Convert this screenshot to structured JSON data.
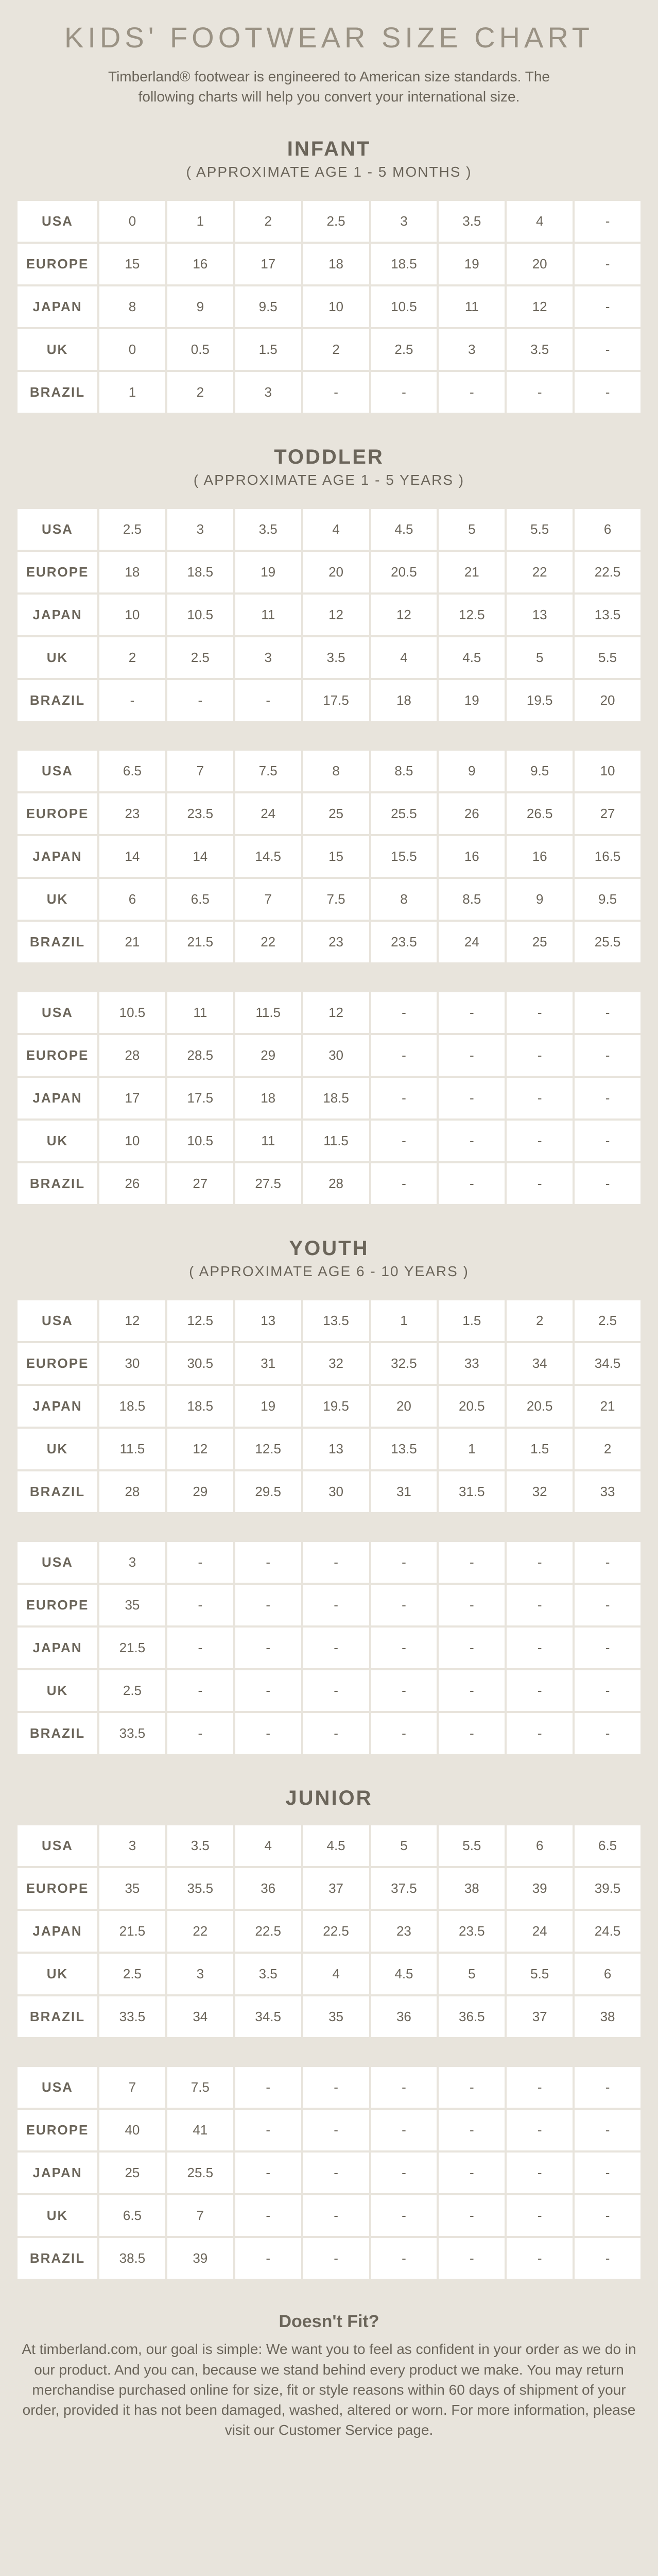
{
  "page_title": "KIDS' FOOTWEAR SIZE CHART",
  "subtitle": "Timberland® footwear is engineered to American size standards. The following charts will help you convert your international size.",
  "regions": [
    "USA",
    "EUROPE",
    "JAPAN",
    "UK",
    "BRAZIL"
  ],
  "sections": [
    {
      "title": "INFANT",
      "sub": "( APPROXIMATE AGE 1 - 5 MONTHS )",
      "tables": [
        [
          [
            "0",
            "1",
            "2",
            "2.5",
            "3",
            "3.5",
            "4",
            "-"
          ],
          [
            "15",
            "16",
            "17",
            "18",
            "18.5",
            "19",
            "20",
            "-"
          ],
          [
            "8",
            "9",
            "9.5",
            "10",
            "10.5",
            "11",
            "12",
            "-"
          ],
          [
            "0",
            "0.5",
            "1.5",
            "2",
            "2.5",
            "3",
            "3.5",
            "-"
          ],
          [
            "1",
            "2",
            "3",
            "-",
            "-",
            "-",
            "-",
            "-"
          ]
        ]
      ]
    },
    {
      "title": "TODDLER",
      "sub": "( APPROXIMATE AGE 1 - 5 YEARS )",
      "tables": [
        [
          [
            "2.5",
            "3",
            "3.5",
            "4",
            "4.5",
            "5",
            "5.5",
            "6"
          ],
          [
            "18",
            "18.5",
            "19",
            "20",
            "20.5",
            "21",
            "22",
            "22.5"
          ],
          [
            "10",
            "10.5",
            "11",
            "12",
            "12",
            "12.5",
            "13",
            "13.5"
          ],
          [
            "2",
            "2.5",
            "3",
            "3.5",
            "4",
            "4.5",
            "5",
            "5.5"
          ],
          [
            "-",
            "-",
            "-",
            "17.5",
            "18",
            "19",
            "19.5",
            "20"
          ]
        ],
        [
          [
            "6.5",
            "7",
            "7.5",
            "8",
            "8.5",
            "9",
            "9.5",
            "10"
          ],
          [
            "23",
            "23.5",
            "24",
            "25",
            "25.5",
            "26",
            "26.5",
            "27"
          ],
          [
            "14",
            "14",
            "14.5",
            "15",
            "15.5",
            "16",
            "16",
            "16.5"
          ],
          [
            "6",
            "6.5",
            "7",
            "7.5",
            "8",
            "8.5",
            "9",
            "9.5"
          ],
          [
            "21",
            "21.5",
            "22",
            "23",
            "23.5",
            "24",
            "25",
            "25.5"
          ]
        ],
        [
          [
            "10.5",
            "11",
            "11.5",
            "12",
            "-",
            "-",
            "-",
            "-"
          ],
          [
            "28",
            "28.5",
            "29",
            "30",
            "-",
            "-",
            "-",
            "-"
          ],
          [
            "17",
            "17.5",
            "18",
            "18.5",
            "-",
            "-",
            "-",
            "-"
          ],
          [
            "10",
            "10.5",
            "11",
            "11.5",
            "-",
            "-",
            "-",
            "-"
          ],
          [
            "26",
            "27",
            "27.5",
            "28",
            "-",
            "-",
            "-",
            "-"
          ]
        ]
      ]
    },
    {
      "title": "YOUTH",
      "sub": "( APPROXIMATE AGE 6 - 10 YEARS )",
      "tables": [
        [
          [
            "12",
            "12.5",
            "13",
            "13.5",
            "1",
            "1.5",
            "2",
            "2.5"
          ],
          [
            "30",
            "30.5",
            "31",
            "32",
            "32.5",
            "33",
            "34",
            "34.5"
          ],
          [
            "18.5",
            "18.5",
            "19",
            "19.5",
            "20",
            "20.5",
            "20.5",
            "21"
          ],
          [
            "11.5",
            "12",
            "12.5",
            "13",
            "13.5",
            "1",
            "1.5",
            "2"
          ],
          [
            "28",
            "29",
            "29.5",
            "30",
            "31",
            "31.5",
            "32",
            "33"
          ]
        ],
        [
          [
            "3",
            "-",
            "-",
            "-",
            "-",
            "-",
            "-",
            "-"
          ],
          [
            "35",
            "-",
            "-",
            "-",
            "-",
            "-",
            "-",
            "-"
          ],
          [
            "21.5",
            "-",
            "-",
            "-",
            "-",
            "-",
            "-",
            "-"
          ],
          [
            "2.5",
            "-",
            "-",
            "-",
            "-",
            "-",
            "-",
            "-"
          ],
          [
            "33.5",
            "-",
            "-",
            "-",
            "-",
            "-",
            "-",
            "-"
          ]
        ]
      ]
    },
    {
      "title": "JUNIOR",
      "sub": "",
      "tables": [
        [
          [
            "3",
            "3.5",
            "4",
            "4.5",
            "5",
            "5.5",
            "6",
            "6.5"
          ],
          [
            "35",
            "35.5",
            "36",
            "37",
            "37.5",
            "38",
            "39",
            "39.5"
          ],
          [
            "21.5",
            "22",
            "22.5",
            "22.5",
            "23",
            "23.5",
            "24",
            "24.5"
          ],
          [
            "2.5",
            "3",
            "3.5",
            "4",
            "4.5",
            "5",
            "5.5",
            "6"
          ],
          [
            "33.5",
            "34",
            "34.5",
            "35",
            "36",
            "36.5",
            "37",
            "38"
          ]
        ],
        [
          [
            "7",
            "7.5",
            "-",
            "-",
            "-",
            "-",
            "-",
            "-"
          ],
          [
            "40",
            "41",
            "-",
            "-",
            "-",
            "-",
            "-",
            "-"
          ],
          [
            "25",
            "25.5",
            "-",
            "-",
            "-",
            "-",
            "-",
            "-"
          ],
          [
            "6.5",
            "7",
            "-",
            "-",
            "-",
            "-",
            "-",
            "-"
          ],
          [
            "38.5",
            "39",
            "-",
            "-",
            "-",
            "-",
            "-",
            "-"
          ]
        ]
      ]
    }
  ],
  "footer_title": "Doesn't Fit?",
  "footer_text": "At timberland.com, our goal is simple: We want you to feel as confident in your order as we do in our product. And you can, because we stand behind every product we make. You may return merchandise purchased online for size, fit or style reasons within 60 days of shipment of your order, provided it has not been damaged, washed, altered or worn. For more information, please visit our Customer Service page."
}
